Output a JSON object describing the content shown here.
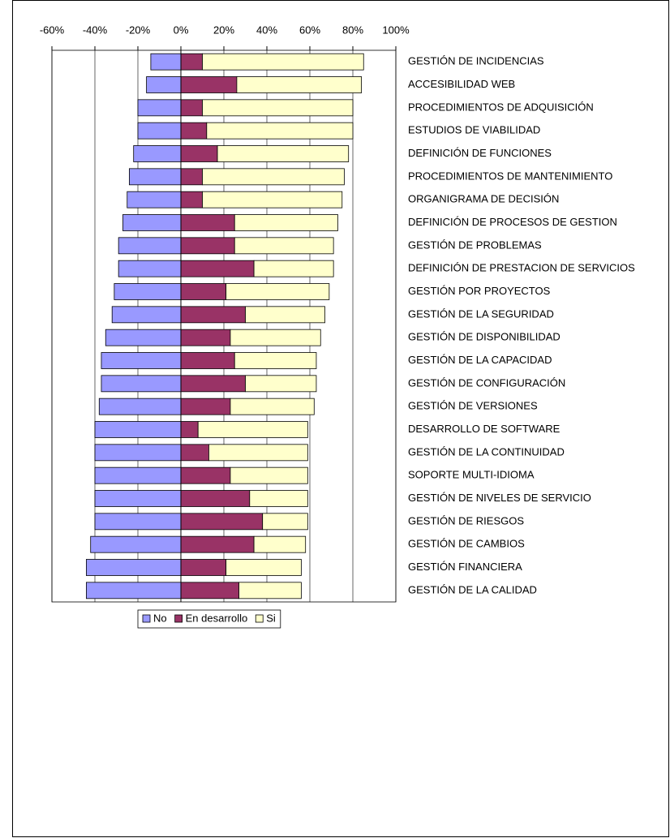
{
  "chart_data": {
    "type": "bar",
    "orientation": "horizontal",
    "stacked": true,
    "categories": [
      "GESTIÓN DE INCIDENCIAS",
      "ACCESIBILIDAD WEB",
      "PROCEDIMIENTOS DE ADQUISICIÓN",
      "ESTUDIOS DE VIABILIDAD",
      "DEFINICIÓN DE FUNCIONES",
      "PROCEDIMIENTOS DE MANTENIMIENTO",
      "ORGANIGRAMA DE DECISIÓN",
      "DEFINICIÓN DE PROCESOS DE GESTION",
      "GESTIÓN DE PROBLEMAS",
      "DEFINICIÓN DE PRESTACION DE SERVICIOS",
      "GESTIÓN POR PROYECTOS",
      "GESTIÓN DE LA SEGURIDAD",
      "GESTIÓN DE DISPONIBILIDAD",
      "GESTIÓN DE LA CAPACIDAD",
      "GESTIÓN DE CONFIGURACIÓN",
      "GESTIÓN DE VERSIONES",
      "DESARROLLO DE SOFTWARE",
      "GESTIÓN DE LA CONTINUIDAD",
      "SOPORTE MULTI-IDIOMA",
      "GESTIÓN DE NIVELES DE SERVICIO",
      "GESTIÓN DE RIESGOS",
      "GESTIÓN DE CAMBIOS",
      "GESTIÓN FINANCIERA",
      "GESTIÓN DE LA CALIDAD"
    ],
    "series": [
      {
        "name": "No",
        "color": "#9999ff",
        "values": [
          -14,
          -16,
          -20,
          -20,
          -22,
          -24,
          -25,
          -27,
          -29,
          -29,
          -31,
          -32,
          -35,
          -37,
          -37,
          -38,
          -40,
          -40,
          -40,
          -40,
          -40,
          -42,
          -44,
          -44
        ]
      },
      {
        "name": "En desarrollo",
        "color": "#993366",
        "values": [
          10,
          26,
          10,
          12,
          17,
          10,
          10,
          25,
          25,
          34,
          21,
          30,
          23,
          25,
          30,
          23,
          8,
          13,
          23,
          32,
          38,
          34,
          21,
          27
        ]
      },
      {
        "name": "Si",
        "color": "#ffffcc",
        "values": [
          75,
          58,
          70,
          68,
          61,
          66,
          65,
          48,
          46,
          37,
          48,
          37,
          42,
          38,
          33,
          39,
          51,
          46,
          36,
          27,
          21,
          24,
          35,
          29
        ]
      }
    ],
    "xlim": [
      -60,
      100
    ],
    "xticks": [
      {
        "value": -60,
        "label": "-60%"
      },
      {
        "value": -40,
        "label": "-40%"
      },
      {
        "value": -20,
        "label": "-20%"
      },
      {
        "value": 0,
        "label": "0%"
      },
      {
        "value": 20,
        "label": "20%"
      },
      {
        "value": 40,
        "label": "40%"
      },
      {
        "value": 60,
        "label": "60%"
      },
      {
        "value": 80,
        "label": "80%"
      },
      {
        "value": 100,
        "label": "100%"
      }
    ],
    "grid": true,
    "legend": "bottom"
  }
}
